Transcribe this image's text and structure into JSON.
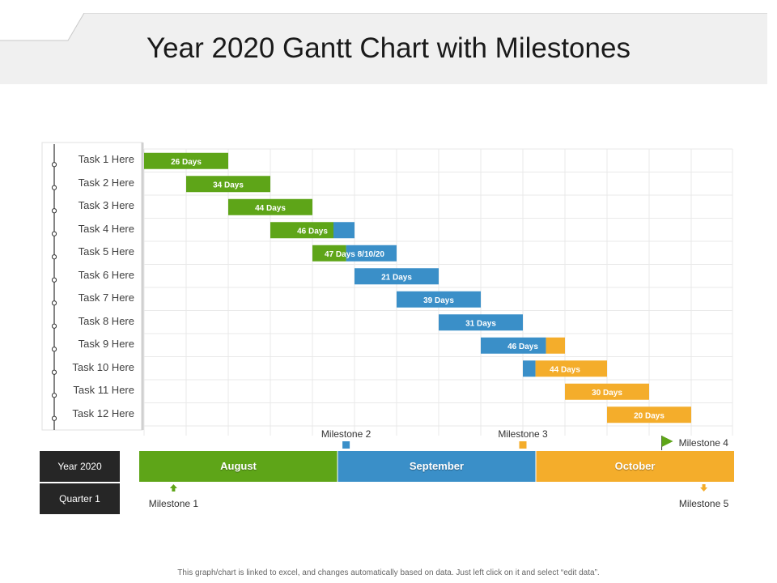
{
  "title": "Year 2020 Gantt Chart with Milestones",
  "footer": "This graph/chart is linked to excel, and changes automatically based on data. Just left click on it and select “edit data”.",
  "colors": {
    "green": "#5ea518",
    "blue": "#3a8fc8",
    "orange": "#f4ad2b",
    "dark": "#262626",
    "grid": "#e9e9e9",
    "header_band": "#f0f0f0"
  },
  "side_labels": {
    "year": "Year 2020",
    "quarter": "Quarter 1"
  },
  "chart_data": {
    "type": "gantt",
    "x_unit": "column",
    "x_range": [
      0,
      14
    ],
    "months": [
      {
        "name": "August",
        "color": "green"
      },
      {
        "name": "September",
        "color": "blue"
      },
      {
        "name": "October",
        "color": "orange"
      }
    ],
    "tasks": [
      {
        "name": "Task 1 Here",
        "label": "26 Days",
        "segments": [
          {
            "start": 0,
            "end": 2,
            "color": "green"
          }
        ]
      },
      {
        "name": "Task 2 Here",
        "label": "34 Days",
        "segments": [
          {
            "start": 1,
            "end": 3,
            "color": "green"
          }
        ]
      },
      {
        "name": "Task 3 Here",
        "label": "44 Days",
        "segments": [
          {
            "start": 2,
            "end": 4,
            "color": "green"
          }
        ]
      },
      {
        "name": "Task 4 Here",
        "label": "46 Days",
        "segments": [
          {
            "start": 3,
            "end": 4.5,
            "color": "green"
          },
          {
            "start": 4.5,
            "end": 5,
            "color": "blue"
          }
        ]
      },
      {
        "name": "Task 5 Here",
        "label": "47 Days 8/10/20",
        "segments": [
          {
            "start": 4,
            "end": 4.8,
            "color": "green"
          },
          {
            "start": 4.8,
            "end": 6,
            "color": "blue"
          }
        ]
      },
      {
        "name": "Task 6 Here",
        "label": "21 Days",
        "segments": [
          {
            "start": 5,
            "end": 7,
            "color": "blue"
          }
        ]
      },
      {
        "name": "Task 7 Here",
        "label": "39 Days",
        "segments": [
          {
            "start": 6,
            "end": 8,
            "color": "blue"
          }
        ]
      },
      {
        "name": "Task 8 Here",
        "label": "31 Days",
        "segments": [
          {
            "start": 7,
            "end": 9,
            "color": "blue"
          }
        ]
      },
      {
        "name": "Task 9 Here",
        "label": "46 Days",
        "segments": [
          {
            "start": 8,
            "end": 9.55,
            "color": "blue"
          },
          {
            "start": 9.55,
            "end": 10,
            "color": "orange"
          }
        ]
      },
      {
        "name": "Task 10 Here",
        "label": "44 Days",
        "segments": [
          {
            "start": 9,
            "end": 9.3,
            "color": "blue"
          },
          {
            "start": 9.3,
            "end": 11,
            "color": "orange"
          }
        ]
      },
      {
        "name": "Task 11 Here",
        "label": "30 Days",
        "segments": [
          {
            "start": 10,
            "end": 12,
            "color": "orange"
          }
        ]
      },
      {
        "name": "Task 12 Here",
        "label": "20 Days",
        "segments": [
          {
            "start": 11,
            "end": 13,
            "color": "orange"
          }
        ]
      }
    ],
    "milestones": [
      {
        "name": "Milestone 1",
        "at": 0.7,
        "marker": "arrow-up",
        "color": "green",
        "placement": "below"
      },
      {
        "name": "Milestone 2",
        "at": 4.8,
        "marker": "square",
        "color": "blue",
        "placement": "above"
      },
      {
        "name": "Milestone 3",
        "at": 9,
        "marker": "square",
        "color": "orange",
        "placement": "above"
      },
      {
        "name": "Milestone 4",
        "at": 12.3,
        "marker": "flag",
        "color": "green",
        "placement": "above"
      },
      {
        "name": "Milestone 5",
        "at": 13.3,
        "marker": "arrow-down",
        "color": "orange",
        "placement": "below"
      }
    ]
  }
}
